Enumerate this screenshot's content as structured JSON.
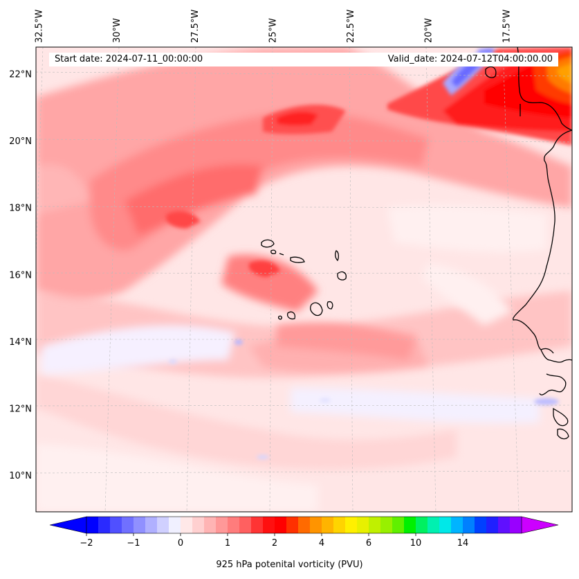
{
  "map": {
    "start_date": "Start date: 2024-07-11_00:00:00",
    "valid_date": "Valid_date: 2024-07-12T04:00:00.00",
    "lon_labels": [
      "32.5°W",
      "30°W",
      "27.5°W",
      "25°W",
      "22.5°W",
      "20°W",
      "17.5°W"
    ],
    "lon_values": [
      -32.5,
      -30,
      -27.5,
      -25,
      -22.5,
      -20,
      -17.5
    ],
    "lat_labels": [
      "22°N",
      "20°N",
      "18°N",
      "16°N",
      "14°N",
      "12°N",
      "10°N"
    ],
    "lat_values": [
      22,
      20,
      18,
      16,
      14,
      12,
      10
    ],
    "extent": {
      "lon_min": -32.6,
      "lon_max": -15.4,
      "lat_min": 8.9,
      "lat_max": 22.8
    },
    "field_variable": "925 hPa potential vorticity",
    "coastlines": [
      "Cape Verde islands",
      "West African coast"
    ]
  },
  "colorbar": {
    "label": "925 hPa potenital vorticity (PVU)",
    "tick_labels": [
      "−2",
      "−1",
      "0",
      "1",
      "2",
      "4",
      "6",
      "10",
      "14"
    ],
    "tick_values": [
      -2,
      -1,
      0,
      1,
      2,
      4,
      6,
      10,
      14
    ],
    "colors": [
      "#0000ff",
      "#2a2aff",
      "#5050ff",
      "#7070ff",
      "#9090ff",
      "#b0b0ff",
      "#d0d0ff",
      "#f0f0ff",
      "#ffe8e8",
      "#ffd0d0",
      "#ffb4b4",
      "#ff9898",
      "#ff7c7c",
      "#ff6060",
      "#ff3434",
      "#ff1010",
      "#ff0000",
      "#ff3000",
      "#ff6a00",
      "#ff9400",
      "#ffb400",
      "#ffd400",
      "#fff000",
      "#e8f000",
      "#c0f000",
      "#98f000",
      "#60f000",
      "#00f000",
      "#00f060",
      "#00f0b0",
      "#00e8e8",
      "#00b4ff",
      "#0080ff",
      "#0040ff",
      "#2020ff",
      "#6010ff",
      "#9900ff"
    ],
    "extend_low": "#0000ff",
    "extend_high": "#cc00ff"
  }
}
